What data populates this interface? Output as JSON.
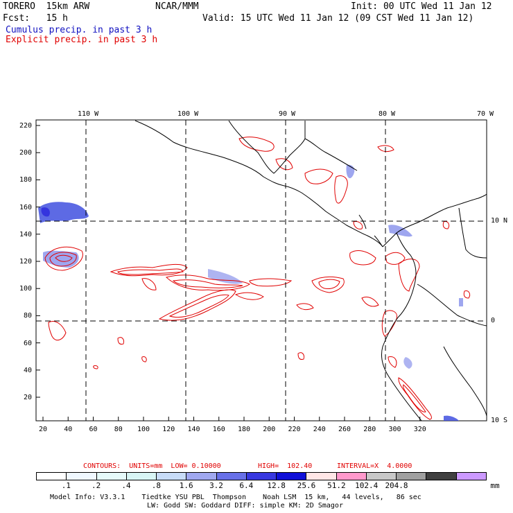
{
  "header": {
    "model": "TORERO  15km ARW",
    "org": "NCAR/MMM",
    "init": "Init: 00 UTC Wed 11 Jan 12",
    "fcst": "Fcst:   15 h",
    "valid": "Valid: 15 UTC Wed 11 Jan 12 (09 CST Wed 11 Jan 12)",
    "cumulus": "Cumulus precip. in past 3 h",
    "explicit": "Explicit precip. in past 3 h",
    "cumulus_color": "#1010c0",
    "explicit_color": "#e00000"
  },
  "axes": {
    "lon_labels": [
      "110 W",
      "100 W",
      "90 W",
      "80 W",
      "70 W"
    ],
    "lat_labels": [
      "10 N",
      "0",
      "10 S"
    ],
    "x_ticks": [
      "20",
      "40",
      "60",
      "80",
      "100",
      "120",
      "140",
      "160",
      "180",
      "200",
      "220",
      "240",
      "260",
      "280",
      "300",
      "320"
    ],
    "y_ticks": [
      "220",
      "200",
      "180",
      "160",
      "140",
      "120",
      "100",
      "80",
      "60",
      "40",
      "20"
    ]
  },
  "contour_info": {
    "label": "CONTOURS:  UNITS=mm  LOW= 0.10000",
    "high": "HIGH=  102.40",
    "interval": "INTERVAL=X  4.0000"
  },
  "legend": {
    "colors": [
      "#ffffff",
      "#f0f8ff",
      "#e6fafa",
      "#d8f5f5",
      "#c8dcf8",
      "#a0a8f0",
      "#6870e8",
      "#3838e0",
      "#1010d8",
      "#ffe6e6",
      "#ff99cc",
      "#c8c8c8",
      "#a0a0a0",
      "#404040",
      "#cc99ff"
    ],
    "labels": [
      ".1",
      ".2",
      ".4",
      ".8",
      "1.6",
      "3.2",
      "6.4",
      "12.8",
      "25.6",
      "51.2",
      "102.4",
      "204.8"
    ],
    "unit": "mm"
  },
  "footer": {
    "line1": "Model Info: V3.3.1    Tiedtke YSU PBL  Thompson    Noah LSM  15 km,   44 levels,   86 sec",
    "line2": "LW: Godd SW: Goddard DIFF: simple KM: 2D Smagor"
  }
}
